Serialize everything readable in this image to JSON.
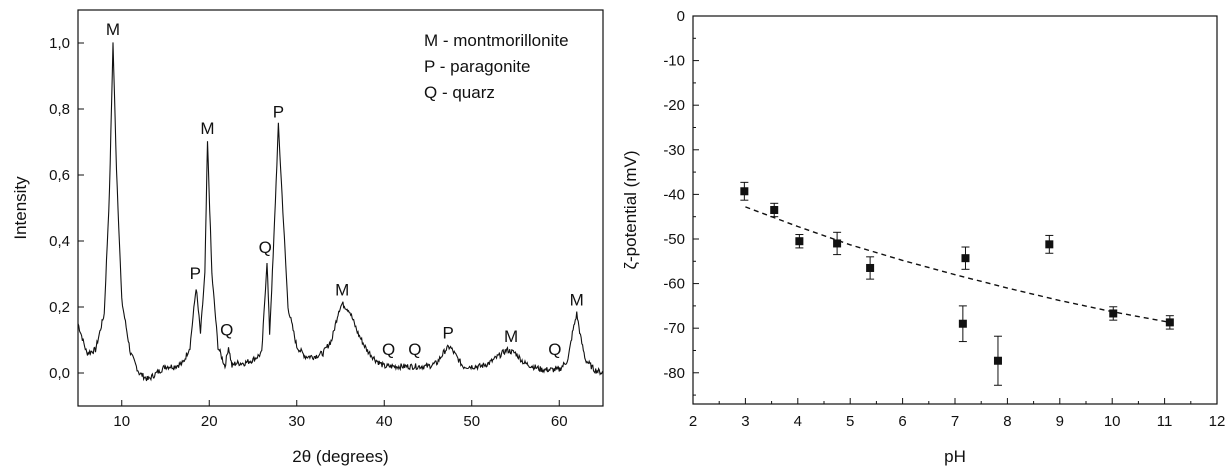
{
  "chart_data": [
    {
      "type": "line",
      "xlabel": "2θ (degrees)",
      "ylabel": "Intensity",
      "xlim": [
        5,
        65
      ],
      "ylim": [
        -0.1,
        1.1
      ],
      "xticks": [
        "10",
        "20",
        "30",
        "40",
        "50",
        "60"
      ],
      "yticks": [
        "0,0",
        "0,2",
        "0,4",
        "0,6",
        "0,8",
        "1,0"
      ],
      "legend_position": "top-right",
      "legend": [
        "M - montmorillonite",
        "P - paragonite",
        "Q - quarz"
      ],
      "series": [
        {
          "values": [
            [
              5,
              0.15
            ],
            [
              6,
              0.06
            ],
            [
              7,
              0.07
            ],
            [
              8,
              0.18
            ],
            [
              8.6,
              0.55
            ],
            [
              9.0,
              1.0
            ],
            [
              9.4,
              0.62
            ],
            [
              10,
              0.22
            ],
            [
              11,
              0.06
            ],
            [
              12,
              0.0
            ],
            [
              13,
              -0.02
            ],
            [
              14,
              0.0
            ],
            [
              15,
              0.02
            ],
            [
              16,
              0.02
            ],
            [
              17,
              0.03
            ],
            [
              17.8,
              0.08
            ],
            [
              18.5,
              0.26
            ],
            [
              19.0,
              0.12
            ],
            [
              19.5,
              0.3
            ],
            [
              19.8,
              0.7
            ],
            [
              20.3,
              0.3
            ],
            [
              21,
              0.08
            ],
            [
              21.8,
              0.02
            ],
            [
              22.2,
              0.08
            ],
            [
              22.6,
              0.02
            ],
            [
              23,
              0.03
            ],
            [
              24,
              0.03
            ],
            [
              25,
              0.04
            ],
            [
              26,
              0.06
            ],
            [
              26.6,
              0.34
            ],
            [
              26.9,
              0.12
            ],
            [
              27.3,
              0.35
            ],
            [
              27.9,
              0.75
            ],
            [
              28.5,
              0.45
            ],
            [
              29,
              0.2
            ],
            [
              30,
              0.08
            ],
            [
              31,
              0.05
            ],
            [
              32,
              0.05
            ],
            [
              33,
              0.06
            ],
            [
              34,
              0.1
            ],
            [
              34.8,
              0.19
            ],
            [
              35.2,
              0.21
            ],
            [
              36,
              0.19
            ],
            [
              37,
              0.12
            ],
            [
              38,
              0.07
            ],
            [
              39,
              0.04
            ],
            [
              40,
              0.02
            ],
            [
              41,
              0.02
            ],
            [
              42,
              0.02
            ],
            [
              43,
              0.02
            ],
            [
              44,
              0.02
            ],
            [
              45,
              0.02
            ],
            [
              46,
              0.03
            ],
            [
              47,
              0.07
            ],
            [
              47.5,
              0.08
            ],
            [
              48,
              0.06
            ],
            [
              49,
              0.02
            ],
            [
              50,
              0.02
            ],
            [
              51,
              0.02
            ],
            [
              52,
              0.03
            ],
            [
              53,
              0.05
            ],
            [
              54,
              0.07
            ],
            [
              55,
              0.06
            ],
            [
              56,
              0.03
            ],
            [
              57,
              0.02
            ],
            [
              58,
              0.01
            ],
            [
              59,
              0.01
            ],
            [
              60,
              0.01
            ],
            [
              61,
              0.04
            ],
            [
              61.5,
              0.12
            ],
            [
              62,
              0.18
            ],
            [
              62.5,
              0.1
            ],
            [
              63,
              0.04
            ],
            [
              64,
              0.01
            ],
            [
              65,
              0.0
            ]
          ]
        }
      ],
      "annotations": [
        {
          "text": "M",
          "x": 9.0,
          "y": 1.0
        },
        {
          "text": "P",
          "x": 18.4,
          "y": 0.26
        },
        {
          "text": "M",
          "x": 19.8,
          "y": 0.7
        },
        {
          "text": "Q",
          "x": 22.0,
          "y": 0.09
        },
        {
          "text": "Q",
          "x": 26.4,
          "y": 0.34
        },
        {
          "text": "P",
          "x": 27.9,
          "y": 0.75
        },
        {
          "text": "M",
          "x": 35.2,
          "y": 0.21
        },
        {
          "text": "Q",
          "x": 40.5,
          "y": 0.03
        },
        {
          "text": "Q",
          "x": 43.5,
          "y": 0.03
        },
        {
          "text": "P",
          "x": 47.3,
          "y": 0.08
        },
        {
          "text": "M",
          "x": 54.5,
          "y": 0.07
        },
        {
          "text": "Q",
          "x": 59.5,
          "y": 0.03
        },
        {
          "text": "M",
          "x": 62.0,
          "y": 0.18
        }
      ]
    },
    {
      "type": "scatter",
      "xlabel": "pH",
      "ylabel": "ζ-potential (mV)",
      "xlim": [
        2,
        12
      ],
      "ylim": [
        -87,
        0
      ],
      "xticks": [
        "2",
        "3",
        "4",
        "5",
        "6",
        "7",
        "8",
        "9",
        "10",
        "11",
        "12"
      ],
      "yticks": [
        "0",
        "-10",
        "-20",
        "-30",
        "-40",
        "-50",
        "-60",
        "-70",
        "-80"
      ],
      "series": [
        {
          "x": [
            2.98,
            3.55,
            4.03,
            4.75,
            5.38,
            7.2,
            7.15,
            7.82,
            8.8,
            10.02,
            11.1
          ],
          "values": [
            -39.3,
            -43.5,
            -50.5,
            -51,
            -56.5,
            -54.3,
            -69,
            -77.3,
            -51.2,
            -66.7,
            -68.7
          ],
          "error": [
            2,
            1.5,
            1.5,
            2.5,
            2.5,
            2.5,
            4,
            5.5,
            2,
            1.5,
            1.5
          ]
        },
        {
          "style": "dashed",
          "x": [
            3,
            4,
            5,
            6,
            7,
            8,
            9,
            10,
            11.1
          ],
          "values": [
            -42.8,
            -47.2,
            -51.3,
            -54.8,
            -58,
            -61,
            -63.8,
            -66.3,
            -68.7
          ]
        }
      ]
    }
  ]
}
